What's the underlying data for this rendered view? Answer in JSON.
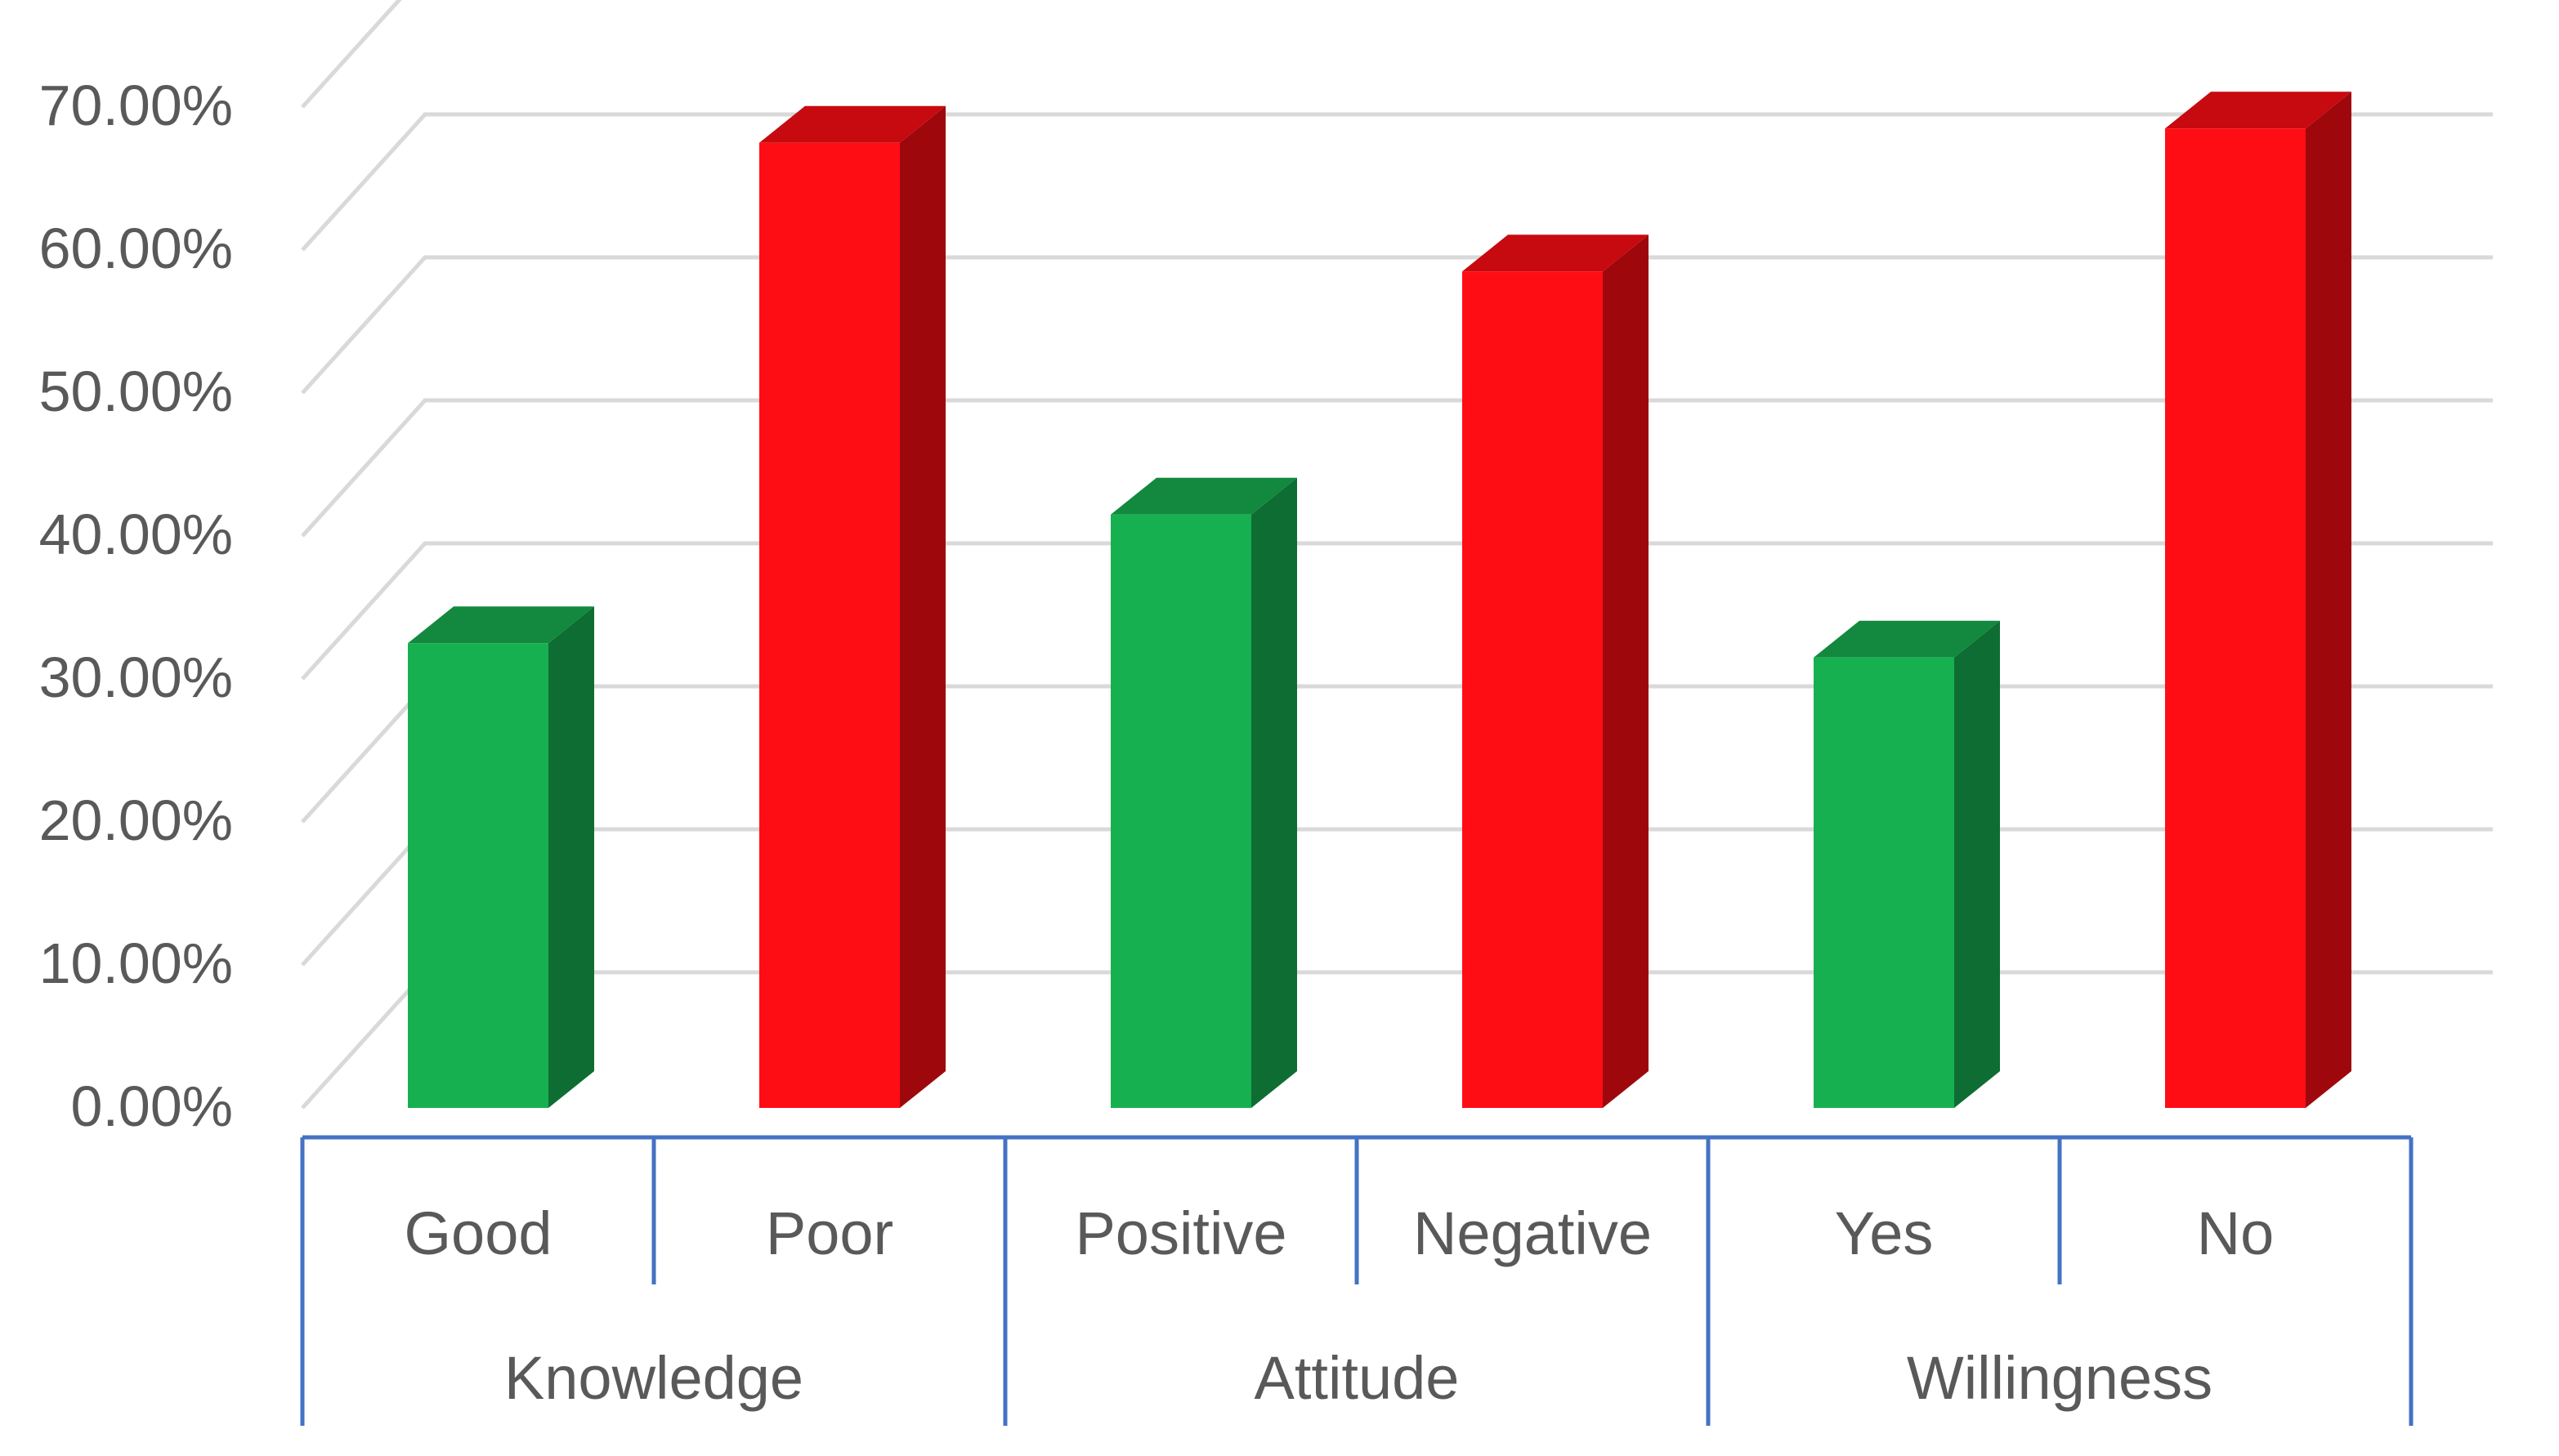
{
  "chart_data": {
    "type": "bar",
    "style": "3d-clustered-column",
    "groups": [
      {
        "name": "Knowledge",
        "categories": [
          "Good",
          "Poor"
        ]
      },
      {
        "name": "Attitude",
        "categories": [
          "Positive",
          "Negative"
        ]
      },
      {
        "name": "Willingness",
        "categories": [
          "Yes",
          "No"
        ]
      }
    ],
    "categories": [
      "Good",
      "Poor",
      "Positive",
      "Negative",
      "Yes",
      "No"
    ],
    "values": [
      32.5,
      67.5,
      41.5,
      58.5,
      31.5,
      68.5
    ],
    "value_format": "percent",
    "bar_colors": [
      "#17b050",
      "#ff0d14",
      "#17b050",
      "#ff0d14",
      "#17b050",
      "#ff0d14"
    ],
    "yticks": [
      "0.00%",
      "10.00%",
      "20.00%",
      "30.00%",
      "40.00%",
      "50.00%",
      "60.00%",
      "70.00%"
    ],
    "ylim": [
      0,
      75
    ],
    "grid": true,
    "legend": "none",
    "title": "",
    "xlabel": "",
    "ylabel": ""
  },
  "colors": {
    "positive": "#17b050",
    "negative": "#ff0d14",
    "axis_line": "#4472c4",
    "gridline": "#d9d9d9",
    "text": "#595959"
  }
}
